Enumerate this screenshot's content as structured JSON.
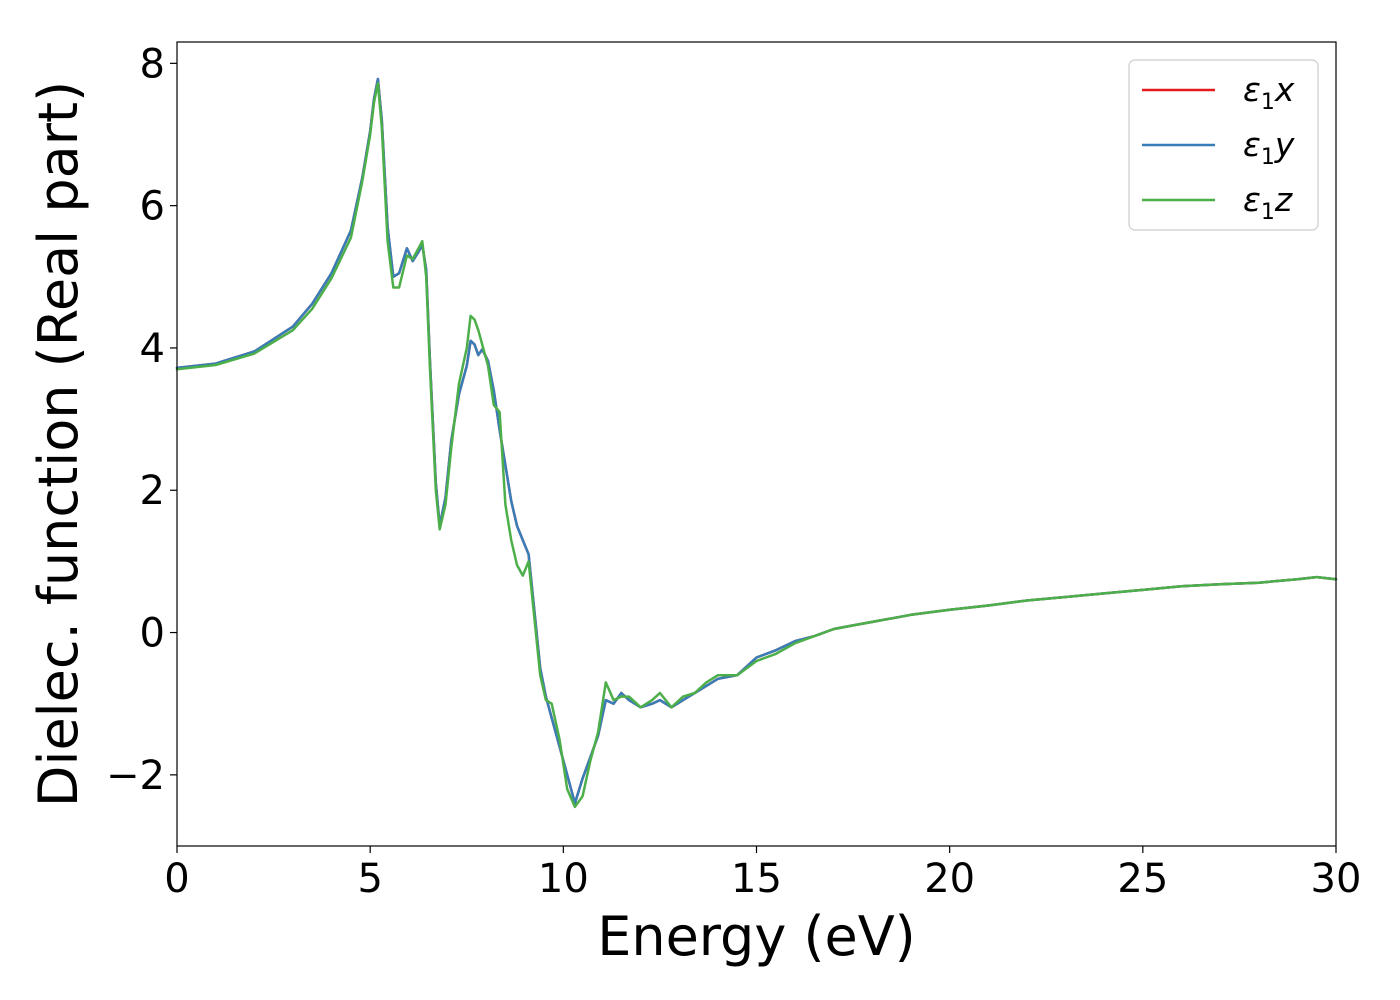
{
  "chart_data": {
    "type": "line",
    "xlabel": "Energy (eV)",
    "ylabel": "Dielec. function (Real part)",
    "xlim": [
      0,
      30
    ],
    "ylim": [
      -3,
      8.3
    ],
    "xticks": [
      0,
      5,
      10,
      15,
      20,
      25,
      30
    ],
    "xtick_labels": [
      "0",
      "5",
      "10",
      "15",
      "20",
      "25",
      "30"
    ],
    "yticks": [
      -2,
      0,
      2,
      4,
      6,
      8
    ],
    "ytick_labels": [
      "−2",
      "0",
      "2",
      "4",
      "6",
      "8"
    ],
    "grid": false,
    "legend_position": "top-right",
    "series": [
      {
        "name": "ε₁x",
        "legend": {
          "main": "ε",
          "sub": "1",
          "suffix": "x"
        },
        "color": "#e41a1c",
        "x": [
          0,
          1,
          2,
          3,
          3.5,
          4,
          4.5,
          4.8,
          5.0,
          5.1,
          5.2,
          5.3,
          5.45,
          5.6,
          5.75,
          5.95,
          6.1,
          6.25,
          6.35,
          6.45,
          6.55,
          6.7,
          6.8,
          6.95,
          7.1,
          7.3,
          7.5,
          7.6,
          7.7,
          7.8,
          7.9,
          8.05,
          8.2,
          8.35,
          8.5,
          8.65,
          8.8,
          8.95,
          9.1,
          9.25,
          9.4,
          9.55,
          9.7,
          9.9,
          10.1,
          10.3,
          10.5,
          10.7,
          10.9,
          11.1,
          11.3,
          11.5,
          11.7,
          12.0,
          12.3,
          12.5,
          12.8,
          13.1,
          13.4,
          13.7,
          14.0,
          14.5,
          15.0,
          15.5,
          16.0,
          16.5,
          17.0,
          17.5,
          18.0,
          19.0,
          20.0,
          21.0,
          22.0,
          23.0,
          24.0,
          25.0,
          26.0,
          27.0,
          28.0,
          29.0,
          29.5,
          30.0
        ],
        "values": [
          3.72,
          3.78,
          3.95,
          4.3,
          4.62,
          5.05,
          5.65,
          6.4,
          7.05,
          7.5,
          7.78,
          7.2,
          5.7,
          5.0,
          5.05,
          5.4,
          5.22,
          5.35,
          5.45,
          5.1,
          3.8,
          2.1,
          1.5,
          1.9,
          2.7,
          3.35,
          3.75,
          4.1,
          4.05,
          3.9,
          3.98,
          3.82,
          3.4,
          2.85,
          2.35,
          1.85,
          1.5,
          1.3,
          1.1,
          0.3,
          -0.5,
          -0.9,
          -1.2,
          -1.6,
          -2.0,
          -2.4,
          -2.05,
          -1.75,
          -1.45,
          -0.95,
          -1.0,
          -0.85,
          -0.95,
          -1.05,
          -1.0,
          -0.95,
          -1.05,
          -0.95,
          -0.85,
          -0.75,
          -0.65,
          -0.6,
          -0.35,
          -0.25,
          -0.12,
          -0.05,
          0.05,
          0.1,
          0.15,
          0.25,
          0.32,
          0.38,
          0.45,
          0.5,
          0.55,
          0.6,
          0.65,
          0.68,
          0.7,
          0.75,
          0.78,
          0.75
        ]
      },
      {
        "name": "ε₁y",
        "legend": {
          "main": "ε",
          "sub": "1",
          "suffix": "y"
        },
        "color": "#377eb8",
        "x": [
          0,
          1,
          2,
          3,
          3.5,
          4,
          4.5,
          4.8,
          5.0,
          5.1,
          5.2,
          5.3,
          5.45,
          5.6,
          5.75,
          5.95,
          6.1,
          6.25,
          6.35,
          6.45,
          6.55,
          6.7,
          6.8,
          6.95,
          7.1,
          7.3,
          7.5,
          7.6,
          7.7,
          7.8,
          7.9,
          8.05,
          8.2,
          8.35,
          8.5,
          8.65,
          8.8,
          8.95,
          9.1,
          9.25,
          9.4,
          9.55,
          9.7,
          9.9,
          10.1,
          10.3,
          10.5,
          10.7,
          10.9,
          11.1,
          11.3,
          11.5,
          11.7,
          12.0,
          12.3,
          12.5,
          12.8,
          13.1,
          13.4,
          13.7,
          14.0,
          14.5,
          15.0,
          15.5,
          16.0,
          16.5,
          17.0,
          17.5,
          18.0,
          19.0,
          20.0,
          21.0,
          22.0,
          23.0,
          24.0,
          25.0,
          26.0,
          27.0,
          28.0,
          29.0,
          29.5,
          30.0
        ],
        "values": [
          3.72,
          3.78,
          3.95,
          4.3,
          4.62,
          5.05,
          5.65,
          6.4,
          7.05,
          7.5,
          7.78,
          7.2,
          5.7,
          5.0,
          5.05,
          5.4,
          5.22,
          5.35,
          5.45,
          5.1,
          3.8,
          2.1,
          1.5,
          1.9,
          2.7,
          3.35,
          3.75,
          4.1,
          4.05,
          3.9,
          3.98,
          3.82,
          3.4,
          2.85,
          2.35,
          1.85,
          1.5,
          1.3,
          1.1,
          0.3,
          -0.5,
          -0.9,
          -1.2,
          -1.6,
          -2.0,
          -2.4,
          -2.05,
          -1.75,
          -1.45,
          -0.95,
          -1.0,
          -0.85,
          -0.95,
          -1.05,
          -1.0,
          -0.95,
          -1.05,
          -0.95,
          -0.85,
          -0.75,
          -0.65,
          -0.6,
          -0.35,
          -0.25,
          -0.12,
          -0.05,
          0.05,
          0.1,
          0.15,
          0.25,
          0.32,
          0.38,
          0.45,
          0.5,
          0.55,
          0.6,
          0.65,
          0.68,
          0.7,
          0.75,
          0.78,
          0.75
        ]
      },
      {
        "name": "ε₁z",
        "legend": {
          "main": "ε",
          "sub": "1",
          "suffix": "z"
        },
        "color": "#4daf4a",
        "x": [
          0,
          1,
          2,
          3,
          3.5,
          4,
          4.5,
          4.8,
          5.0,
          5.1,
          5.2,
          5.3,
          5.45,
          5.6,
          5.75,
          5.95,
          6.1,
          6.25,
          6.35,
          6.45,
          6.55,
          6.7,
          6.8,
          6.95,
          7.1,
          7.3,
          7.5,
          7.6,
          7.7,
          7.8,
          7.9,
          8.05,
          8.2,
          8.35,
          8.5,
          8.65,
          8.8,
          8.95,
          9.1,
          9.25,
          9.4,
          9.55,
          9.7,
          9.9,
          10.1,
          10.3,
          10.5,
          10.7,
          10.9,
          11.1,
          11.3,
          11.5,
          11.7,
          12.0,
          12.3,
          12.5,
          12.8,
          13.1,
          13.4,
          13.7,
          14.0,
          14.5,
          15.0,
          15.5,
          16.0,
          16.5,
          17.0,
          17.5,
          18.0,
          19.0,
          20.0,
          21.0,
          22.0,
          23.0,
          24.0,
          25.0,
          26.0,
          27.0,
          28.0,
          29.0,
          29.5,
          30.0
        ],
        "values": [
          3.7,
          3.76,
          3.92,
          4.25,
          4.55,
          4.98,
          5.55,
          6.35,
          7.0,
          7.45,
          7.72,
          7.1,
          5.5,
          4.85,
          4.85,
          5.3,
          5.25,
          5.4,
          5.5,
          5.0,
          3.7,
          2.0,
          1.45,
          1.8,
          2.6,
          3.5,
          4.0,
          4.45,
          4.4,
          4.25,
          4.05,
          3.75,
          3.2,
          3.1,
          1.8,
          1.3,
          0.95,
          0.8,
          1.0,
          0.2,
          -0.6,
          -0.95,
          -1.0,
          -1.5,
          -2.2,
          -2.45,
          -2.3,
          -1.8,
          -1.4,
          -0.7,
          -0.95,
          -0.9,
          -0.9,
          -1.05,
          -0.95,
          -0.85,
          -1.05,
          -0.9,
          -0.85,
          -0.7,
          -0.6,
          -0.6,
          -0.4,
          -0.3,
          -0.15,
          -0.05,
          0.05,
          0.1,
          0.15,
          0.25,
          0.32,
          0.38,
          0.45,
          0.5,
          0.55,
          0.6,
          0.65,
          0.68,
          0.7,
          0.75,
          0.78,
          0.75
        ]
      }
    ]
  }
}
